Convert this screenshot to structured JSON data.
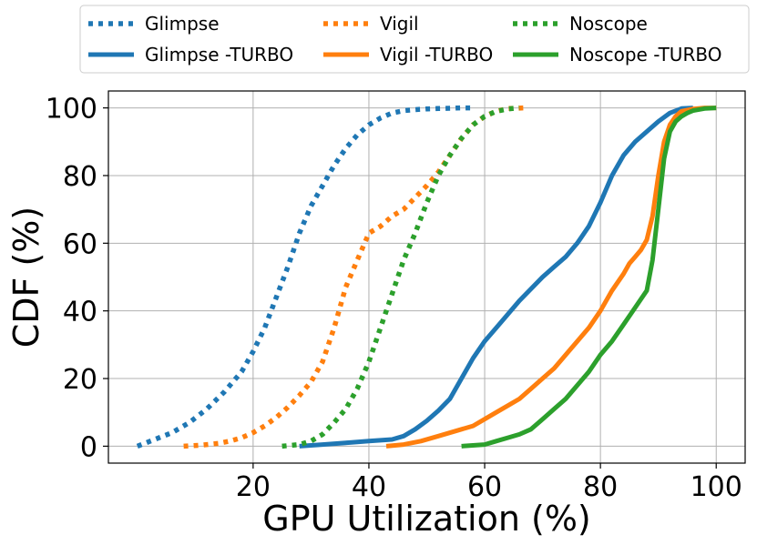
{
  "chart_data": {
    "type": "line",
    "xlabel": "GPU Utilization (%)",
    "ylabel": "CDF (%)",
    "xlim": [
      -5,
      105
    ],
    "ylim": [
      -5,
      105
    ],
    "xticks": [
      20,
      40,
      60,
      80,
      100
    ],
    "yticks": [
      0,
      20,
      40,
      60,
      80,
      100
    ],
    "grid": true,
    "legend": {
      "placement": "top-outside",
      "columns": 3
    },
    "series": [
      {
        "name": "Glimpse",
        "style": "dotted",
        "color": "#1f77b4",
        "x": [
          0,
          3,
          6,
          9,
          12,
          15,
          18,
          20,
          22,
          24,
          26,
          28,
          30,
          32,
          34,
          36,
          38,
          40,
          42,
          44,
          46,
          48,
          50,
          52,
          54,
          56,
          58
        ],
        "y": [
          0,
          2,
          4,
          7,
          11,
          16,
          22,
          28,
          35,
          44,
          53,
          63,
          71,
          77,
          83,
          88,
          92,
          95,
          97,
          98.5,
          99.2,
          99.5,
          99.7,
          99.8,
          99.9,
          100,
          100
        ]
      },
      {
        "name": "Glimpse -TURBO",
        "style": "solid",
        "color": "#1f77b4",
        "x": [
          28,
          32,
          36,
          40,
          44,
          46,
          48,
          50,
          52,
          54,
          56,
          58,
          60,
          62,
          64,
          66,
          68,
          70,
          72,
          74,
          76,
          78,
          80,
          82,
          84,
          86,
          88,
          90,
          92,
          94,
          96
        ],
        "y": [
          0,
          0.5,
          1,
          1.5,
          2,
          3,
          5,
          7.5,
          10.5,
          14,
          20,
          26,
          31,
          35,
          39,
          43,
          46.5,
          50,
          53,
          56,
          60,
          65,
          72,
          80,
          86,
          90,
          93,
          96,
          98.5,
          99.8,
          100
        ]
      },
      {
        "name": "Vigil",
        "style": "dotted",
        "color": "#ff7f0e",
        "x": [
          8,
          11,
          14,
          16,
          18,
          20,
          22,
          24,
          26,
          28,
          30,
          32,
          34,
          36,
          38,
          40,
          42,
          44,
          46,
          48,
          50,
          52,
          54,
          56,
          58,
          60,
          62,
          64,
          67
        ],
        "y": [
          0,
          0.3,
          0.8,
          1.5,
          2.5,
          4,
          6,
          8.5,
          11.5,
          15,
          19,
          25,
          35,
          47,
          55,
          63,
          65,
          68,
          70,
          73.5,
          77,
          81,
          86,
          91,
          95,
          97.5,
          99,
          99.8,
          100
        ]
      },
      {
        "name": "Vigil -TURBO",
        "style": "solid",
        "color": "#ff7f0e",
        "x": [
          43,
          46,
          49,
          52,
          55,
          58,
          60,
          62,
          64,
          66,
          68,
          70,
          72,
          74,
          76,
          78,
          80,
          82,
          84,
          85,
          86,
          87,
          88,
          89,
          90,
          91,
          92,
          93,
          94,
          96,
          98,
          100
        ],
        "y": [
          0,
          0.5,
          1.5,
          3,
          4.5,
          6,
          8,
          10,
          12,
          14,
          17,
          20,
          23,
          27,
          31,
          35,
          40,
          46,
          51,
          54,
          56,
          58,
          61,
          68,
          80,
          90,
          95,
          97.5,
          99,
          99.7,
          100,
          100
        ]
      },
      {
        "name": "Noscope",
        "style": "dotted",
        "color": "#2ca02c",
        "x": [
          25,
          28,
          30,
          32,
          34,
          36,
          38,
          40,
          42,
          44,
          46,
          48,
          50,
          52,
          54,
          56,
          58,
          60,
          62,
          64,
          66
        ],
        "y": [
          0,
          0.5,
          1.5,
          3.5,
          7,
          11,
          17,
          25,
          35,
          45,
          55,
          63,
          72,
          80,
          86,
          91,
          95,
          97.5,
          99,
          99.7,
          100
        ]
      },
      {
        "name": "Noscope -TURBO",
        "style": "solid",
        "color": "#2ca02c",
        "x": [
          56,
          60,
          62,
          64,
          66,
          68,
          70,
          72,
          74,
          76,
          78,
          80,
          82,
          84,
          86,
          88,
          89,
          90,
          91,
          92,
          93,
          94,
          95,
          96,
          98,
          100
        ],
        "y": [
          0,
          0.5,
          1.5,
          2.5,
          3.5,
          5,
          8,
          11,
          14,
          18,
          22,
          27,
          31,
          36,
          41,
          46,
          55,
          70,
          85,
          93,
          96,
          97.5,
          98.5,
          99.2,
          99.8,
          100
        ]
      }
    ]
  }
}
